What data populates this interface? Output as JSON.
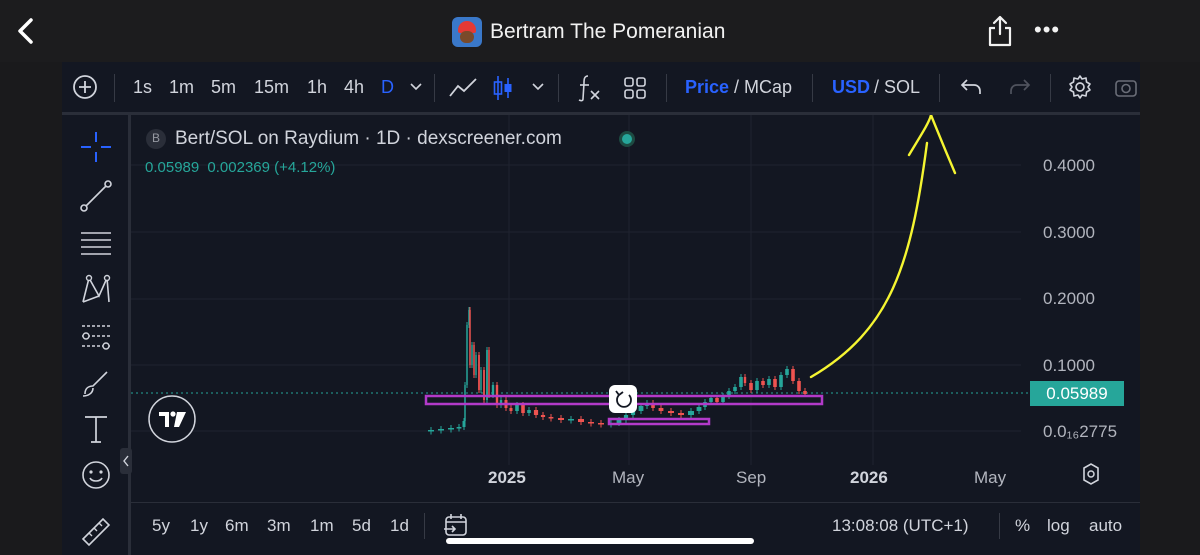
{
  "header": {
    "title": "Bertram The Pomeranian",
    "back_icon": "chevron-left-icon",
    "share_icon": "share-icon",
    "more_icon": "more-dots-icon",
    "more_text": "•••"
  },
  "toolbar": {
    "intervals": [
      "1s",
      "1m",
      "5m",
      "15m",
      "1h",
      "4h",
      "D"
    ],
    "selected_interval": "D",
    "price_label": "Price",
    "mcap_label": "/ MCap",
    "usd_label": "USD",
    "sol_label": "/ SOL"
  },
  "legend": {
    "symbol_badge": "B",
    "name": "Bert/SOL on Raydium · 1D · dexscreener.com",
    "close": "0.05989",
    "change": "0.002369 (+4.12%)"
  },
  "price_scale": {
    "labels": [
      "0.4000",
      "0.3000",
      "0.2000",
      "0.1000",
      "0.0₁₆2775"
    ],
    "current_price": "0.05989"
  },
  "time_scale": {
    "labels": [
      "2025",
      "May",
      "Sep",
      "2026",
      "May"
    ]
  },
  "bottom": {
    "ranges": [
      "5y",
      "1y",
      "6m",
      "3m",
      "1m",
      "5d",
      "1d"
    ],
    "time": "13:08:08 (UTC+1)",
    "percent": "%",
    "log": "log",
    "auto": "auto"
  },
  "colors": {
    "up": "#26a69a",
    "down": "#ef5350",
    "accent": "#2962ff",
    "highlight_box": "#9c27b0",
    "annotation": "#f5f531"
  }
}
